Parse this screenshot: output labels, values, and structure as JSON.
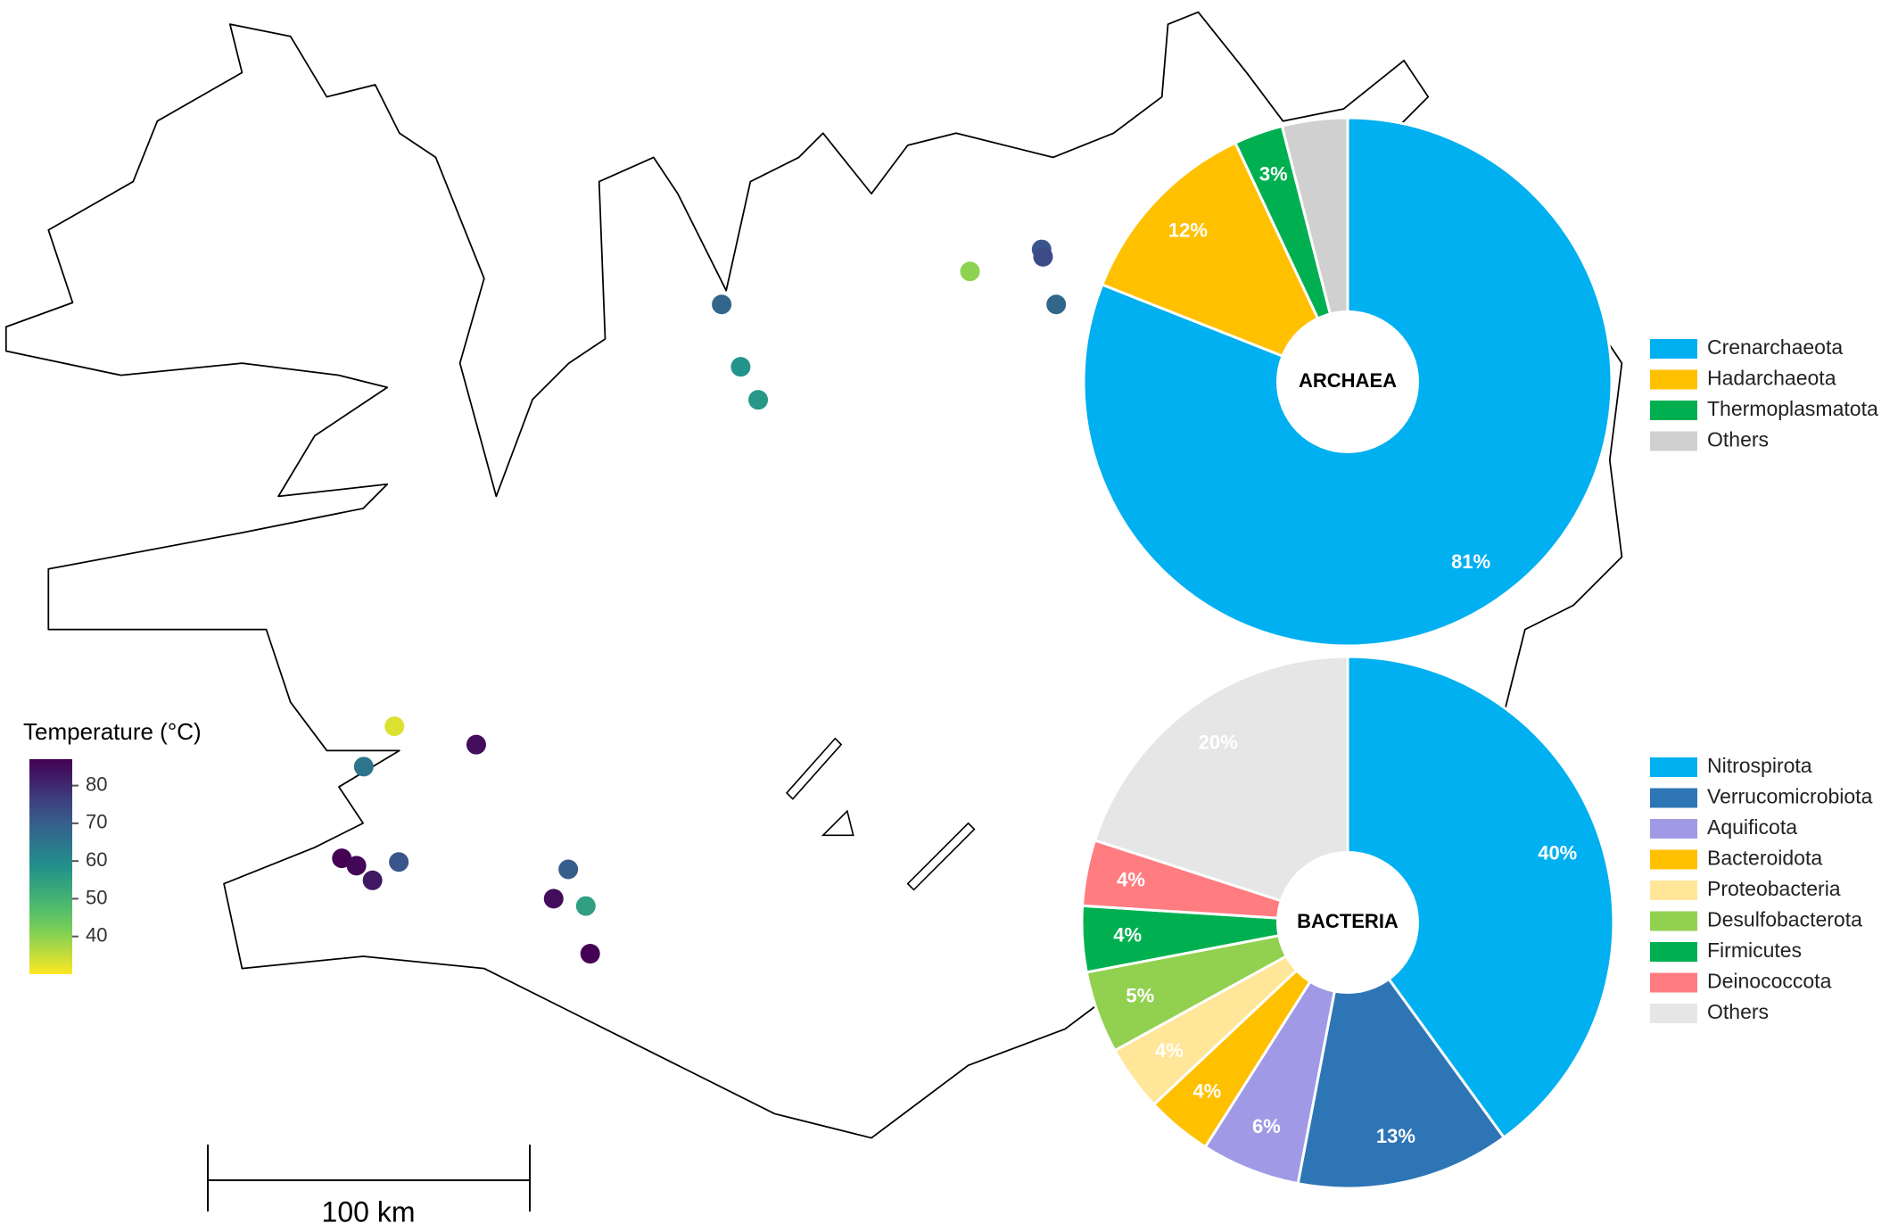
{
  "map": {
    "sites": [
      {
        "lon": -19.66,
        "lat": 65.77,
        "temperature": 68
      },
      {
        "lon": -19.53,
        "lat": 65.6,
        "temperature": 58
      },
      {
        "lon": -19.41,
        "lat": 65.51,
        "temperature": 57
      },
      {
        "lon": -17.96,
        "lat": 65.86,
        "temperature": 40
      },
      {
        "lon": -17.47,
        "lat": 65.92,
        "temperature": 72
      },
      {
        "lon": -17.46,
        "lat": 65.9,
        "temperature": 74
      },
      {
        "lon": -17.37,
        "lat": 65.77,
        "temperature": 68
      },
      {
        "lon": -21.9,
        "lat": 64.62,
        "temperature": 33
      },
      {
        "lon": -21.34,
        "lat": 64.57,
        "temperature": 85
      },
      {
        "lon": -22.11,
        "lat": 64.51,
        "temperature": 65
      },
      {
        "lon": -22.26,
        "lat": 64.26,
        "temperature": 88
      },
      {
        "lon": -22.16,
        "lat": 64.24,
        "temperature": 86
      },
      {
        "lon": -22.05,
        "lat": 64.2,
        "temperature": 83
      },
      {
        "lon": -21.87,
        "lat": 64.25,
        "temperature": 72
      },
      {
        "lon": -20.71,
        "lat": 64.23,
        "temperature": 70
      },
      {
        "lon": -20.81,
        "lat": 64.15,
        "temperature": 85
      },
      {
        "lon": -20.59,
        "lat": 64.13,
        "temperature": 55
      },
      {
        "lon": -20.56,
        "lat": 64.0,
        "temperature": 88
      }
    ],
    "colorbar": {
      "title": "Temperature (°C)",
      "lim": [
        30,
        87
      ],
      "ticks": [
        40,
        50,
        60,
        70,
        80
      ]
    },
    "scale_bar": {
      "label": "100 km"
    }
  },
  "chart_data": [
    {
      "type": "pie",
      "center_label": "ARCHAEA",
      "categories": [
        "Crenarchaeota",
        "Hadarchaeota",
        "Thermoplasmatota",
        "Others"
      ],
      "values": [
        81,
        12,
        3,
        4
      ],
      "value_labels": [
        "81%",
        "12%",
        "3%",
        null
      ],
      "colors": [
        "#00b0f0",
        "#ffc000",
        "#00b050",
        "#d0d0d0"
      ]
    },
    {
      "type": "pie",
      "center_label": "BACTERIA",
      "categories": [
        "Nitrospirota",
        "Verrucomicrobiota",
        "Aquificota",
        "Bacteroidota",
        "Proteobacteria",
        "Desulfobacterota",
        "Firmicutes",
        "Deinococcota",
        "Others"
      ],
      "values": [
        40,
        13,
        6,
        4,
        4,
        5,
        4,
        4,
        20
      ],
      "value_labels": [
        "40%",
        "13%",
        "6%",
        "4%",
        "4%",
        "5%",
        "4%",
        "4%",
        "20%"
      ],
      "colors": [
        "#00b0f0",
        "#2e75b6",
        "#a09ae6",
        "#ffc000",
        "#ffe699",
        "#92d050",
        "#00b050",
        "#ff7c80",
        "#e7e6e6"
      ]
    }
  ]
}
